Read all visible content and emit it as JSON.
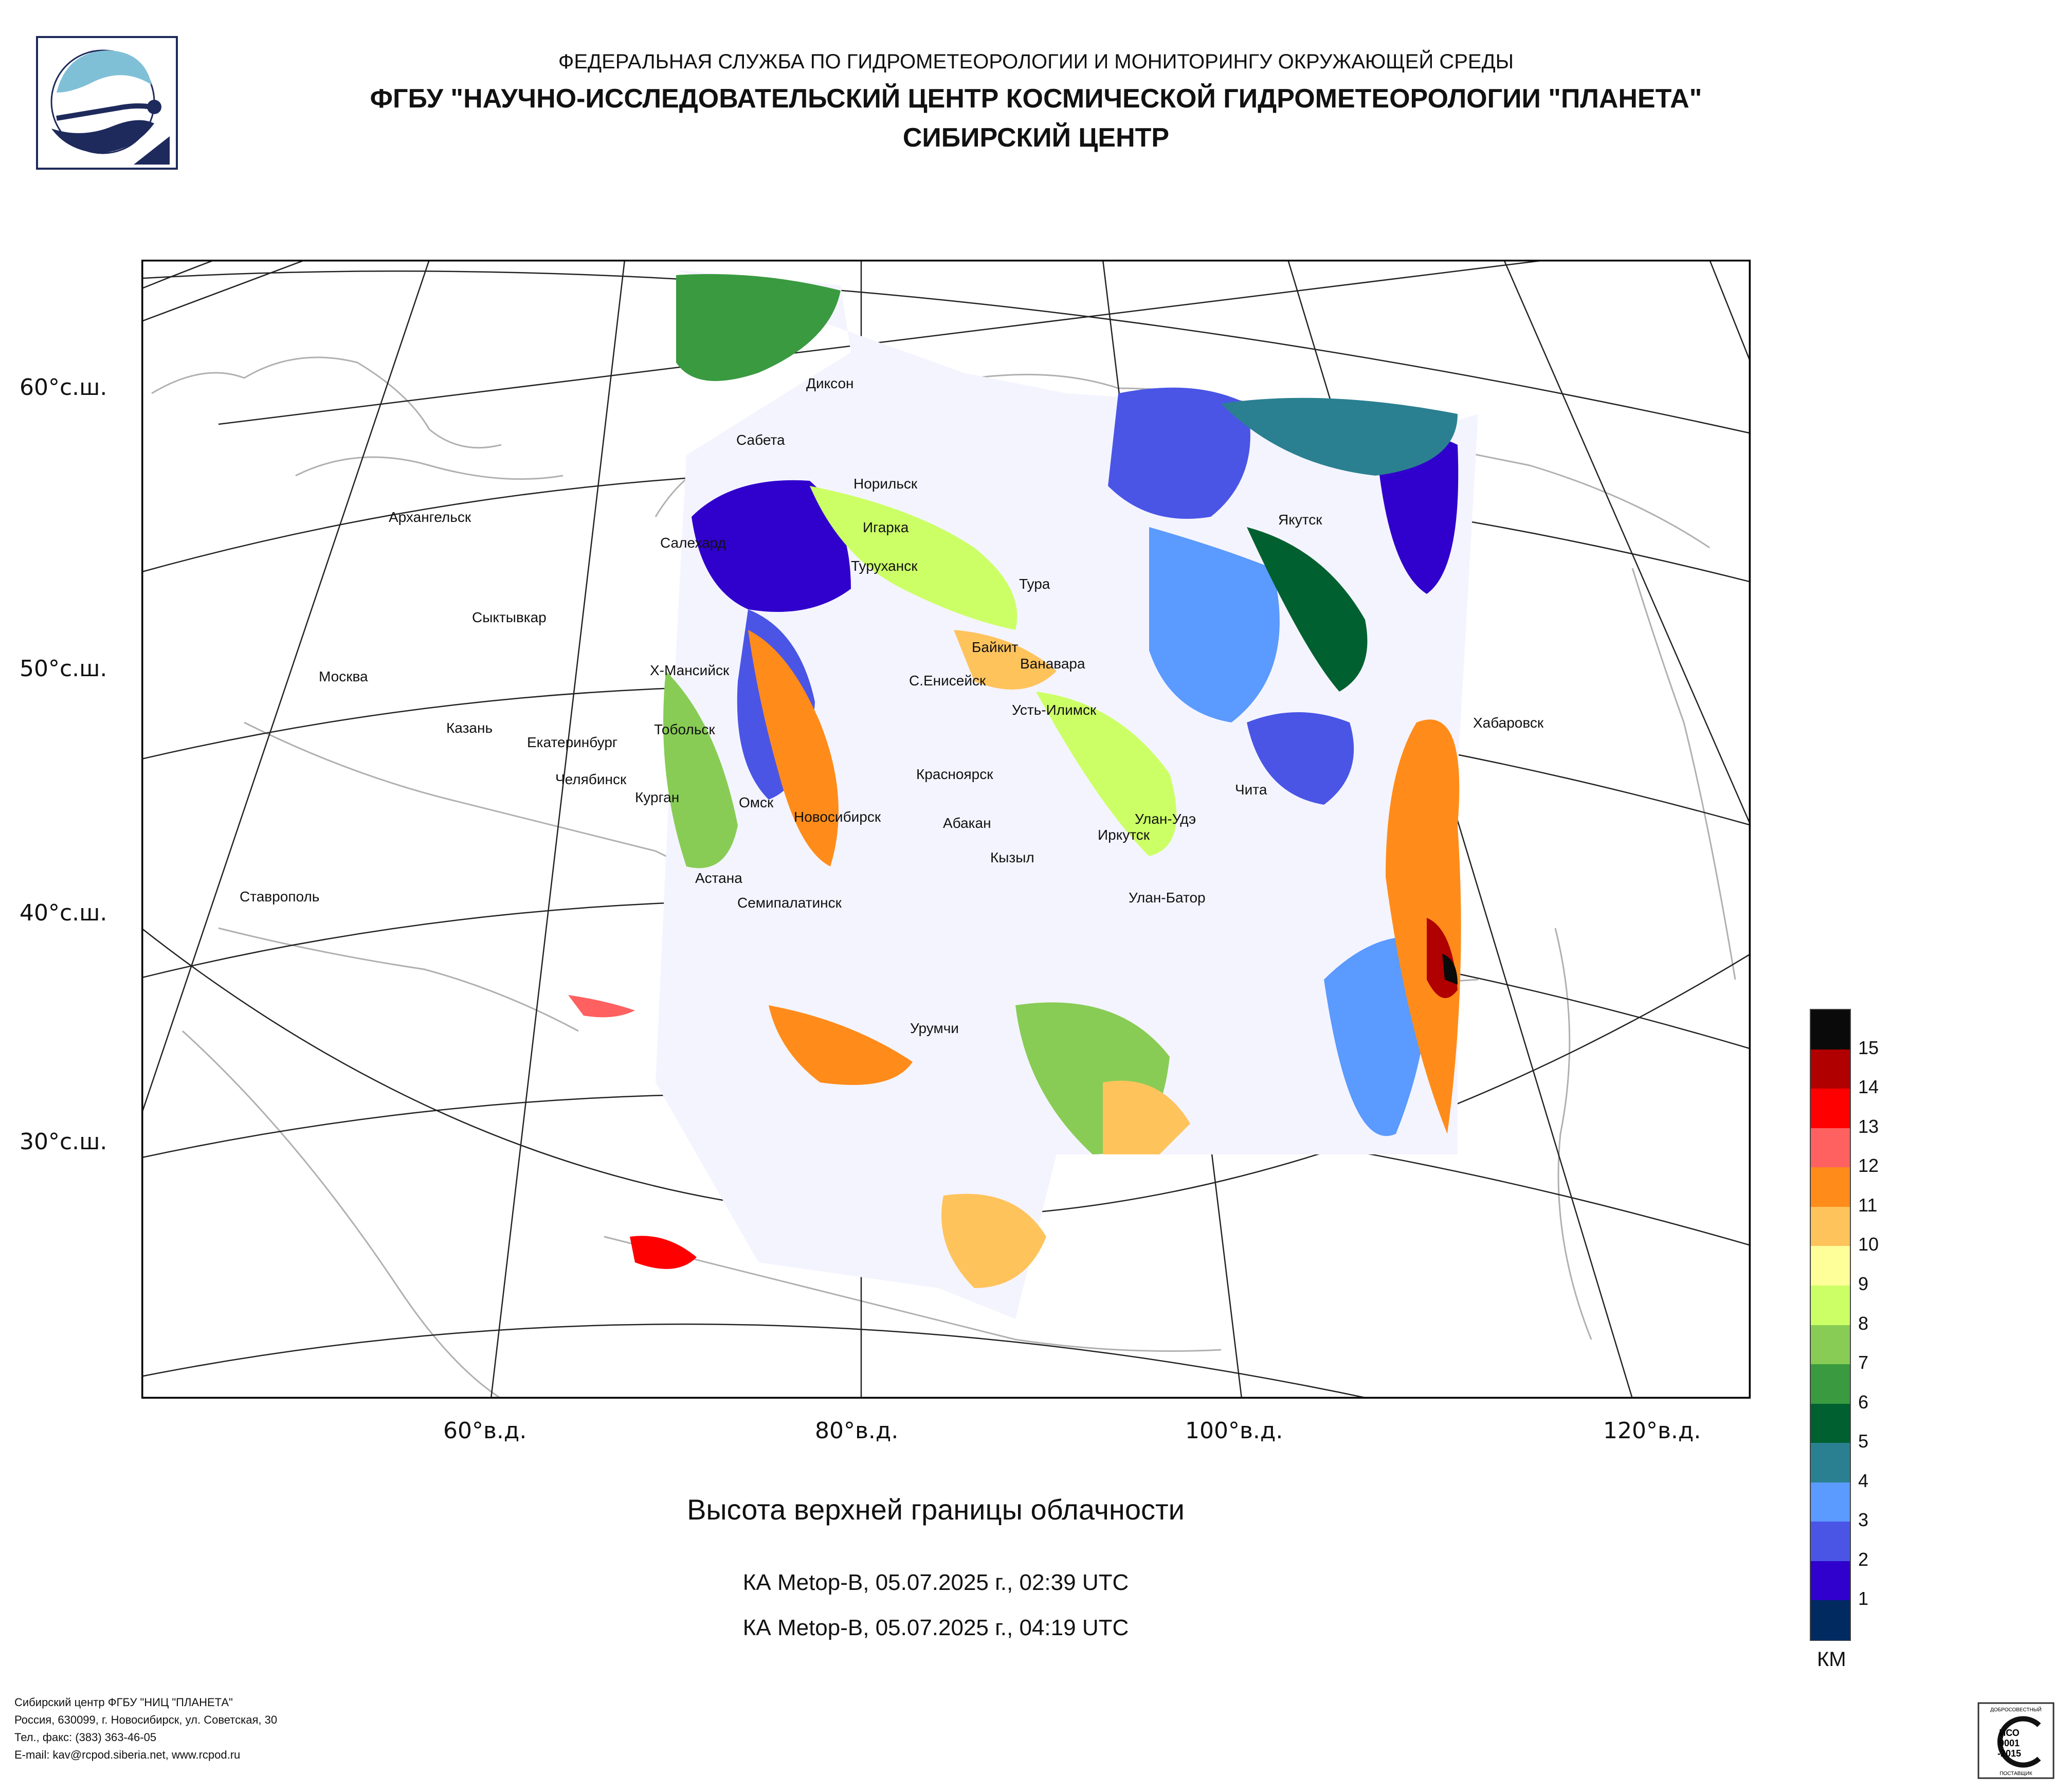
{
  "header": {
    "line1": "ФЕДЕРАЛЬНАЯ СЛУЖБА ПО ГИДРОМЕТЕОРОЛОГИИ И МОНИТОРИНГУ ОКРУЖАЮЩЕЙ СРЕДЫ",
    "line2": "ФГБУ \"НАУЧНО-ИССЛЕДОВАТЕЛЬСКИЙ ЦЕНТР КОСМИЧЕСКОЙ ГИДРОМЕТЕОРОЛОГИИ \"ПЛАНЕТА\"",
    "line3": "СИБИРСКИЙ ЦЕНТР"
  },
  "latitude_labels": [
    "60°с.ш.",
    "50°с.ш.",
    "40°с.ш.",
    "30°с.ш."
  ],
  "longitude_labels": [
    "60°в.д.",
    "80°в.д.",
    "100°в.д.",
    "120°в.д."
  ],
  "cities": [
    "Диксон",
    "Сабета",
    "Норильск",
    "Игарка",
    "Туруханск",
    "Салехард",
    "Архангельск",
    "Сыктывкар",
    "Москва",
    "Казань",
    "Екатеринбург",
    "Челябинск",
    "Курган",
    "Тобольск",
    "Х-Мансийск",
    "Омск",
    "Новосибирск",
    "Астана",
    "Семипалатинск",
    "Красноярск",
    "Абакан",
    "Кызыл",
    "Байкит",
    "Ванавара",
    "С.Енисейск",
    "Усть-Илимск",
    "Тура",
    "Якутск",
    "Хабаровск",
    "Чита",
    "Улан-Удэ",
    "Иркутск",
    "Улан-Батор",
    "Урумчи",
    "Ставрополь"
  ],
  "caption": {
    "title": "Высота верхней границы облачности",
    "pass1": "КА Metop-B, 05.07.2025 г., 02:39 UTC",
    "pass2": "КА Metop-B, 05.07.2025 г., 04:19 UTC"
  },
  "legend": {
    "unit": "КМ",
    "levels": [
      "15",
      "14",
      "13",
      "12",
      "11",
      "10",
      "9",
      "8",
      "7",
      "6",
      "5",
      "4",
      "3",
      "2",
      "1"
    ],
    "colors": [
      "#0a0a0a",
      "#b00000",
      "#ff0000",
      "#ff6060",
      "#ff8c1a",
      "#ffc35c",
      "#ffff99",
      "#ccff66",
      "#88cc55",
      "#3a9a40",
      "#006030",
      "#2a8090",
      "#5b9aff",
      "#4a55e6",
      "#3000cc",
      "#002a60"
    ]
  },
  "footer": {
    "line1": "Сибирский центр ФГБУ \"НИЦ \"ПЛАНЕТА\"",
    "line2": "Россия, 630099, г. Новосибирск, ул. Советская, 30",
    "line3": "Тел., факс: (383) 363-46-05",
    "line4": "E-mail: kav@rcpod.siberia.net, www.rcpod.ru"
  },
  "iso_badge": {
    "top": "ДОБРОСОВЕСТНЫЙ",
    "l1": "ИСО",
    "l2": "9001",
    "l3": "-2015",
    "bottom": "ПОСТАВЩИК"
  }
}
